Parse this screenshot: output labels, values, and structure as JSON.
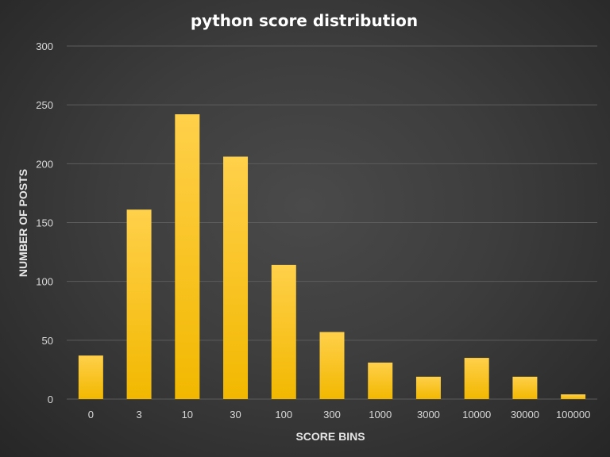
{
  "chart_data": {
    "type": "bar",
    "title": "python score distribution",
    "xlabel": "SCORE BINS",
    "ylabel": "NUMBER OF POSTS",
    "categories": [
      "0",
      "3",
      "10",
      "30",
      "100",
      "300",
      "1000",
      "3000",
      "10000",
      "30000",
      "100000"
    ],
    "values": [
      37,
      161,
      242,
      206,
      114,
      57,
      31,
      19,
      35,
      19,
      4
    ],
    "ylim": [
      0,
      300
    ],
    "yticks": [
      0,
      50,
      100,
      150,
      200,
      250,
      300
    ],
    "grid": true,
    "legend": "none",
    "colors": {
      "bar_top": "#ffd04a",
      "bar_bottom": "#f2b800",
      "grid": "#5c5c5c"
    }
  }
}
